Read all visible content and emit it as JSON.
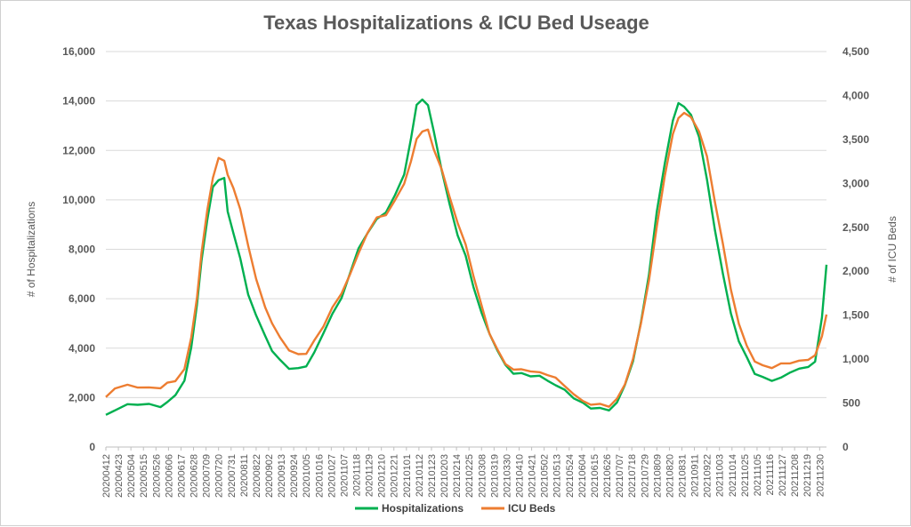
{
  "chart_data": {
    "type": "line",
    "title": "Texas Hospitalizations & ICU Bed Useage",
    "ylabel": "# of Hospitalizations",
    "y2label": "# of ICU Beds",
    "ylim": [
      0,
      16000
    ],
    "y2lim": [
      0,
      4500
    ],
    "yticks": [
      "16,000",
      "14,000",
      "12,000",
      "10,000",
      "8,000",
      "6,000",
      "4,000",
      "2,000",
      "0"
    ],
    "y2ticks": [
      "4,500",
      "4,000",
      "3,500",
      "3,000",
      "2,500",
      "2,000",
      "1,500",
      "1,000",
      "500",
      "0"
    ],
    "x_start": "2020-04-12",
    "x_end": "2022-01-05",
    "xticks": [
      "20200412",
      "20200423",
      "20200504",
      "20200515",
      "20200526",
      "20200606",
      "20200617",
      "20200628",
      "20200709",
      "20200720",
      "20200731",
      "20200811",
      "20200822",
      "20200902",
      "20200913",
      "20200924",
      "20201005",
      "20201016",
      "20201027",
      "20201107",
      "20201118",
      "20201129",
      "20201210",
      "20201221",
      "20210101",
      "20210112",
      "20210123",
      "20210203",
      "20210214",
      "20210225",
      "20210308",
      "20210319",
      "20210330",
      "20210410",
      "20210421",
      "20210502",
      "20210513",
      "20210524",
      "20210604",
      "20210615",
      "20210626",
      "20210707",
      "20210718",
      "20210729",
      "20210809",
      "20210820",
      "20210831",
      "20210911",
      "20210922",
      "20211003",
      "20211014",
      "20211025",
      "20211105",
      "20211116",
      "20211127",
      "20211208",
      "20211219",
      "20211230"
    ],
    "legend_position": "bottom",
    "series": [
      {
        "name": "Hospitalizations",
        "axis": "left",
        "color": "#00b050",
        "points": [
          [
            "2020-04-12",
            1300
          ],
          [
            "2020-04-20",
            1500
          ],
          [
            "2020-05-01",
            1700
          ],
          [
            "2020-05-10",
            1750
          ],
          [
            "2020-05-20",
            1700
          ],
          [
            "2020-05-30",
            1650
          ],
          [
            "2020-06-05",
            1800
          ],
          [
            "2020-06-12",
            2100
          ],
          [
            "2020-06-20",
            2700
          ],
          [
            "2020-06-26",
            4000
          ],
          [
            "2020-07-01",
            5800
          ],
          [
            "2020-07-05",
            7500
          ],
          [
            "2020-07-10",
            9200
          ],
          [
            "2020-07-15",
            10500
          ],
          [
            "2020-07-20",
            10800
          ],
          [
            "2020-07-25",
            10900
          ],
          [
            "2020-07-28",
            9500
          ],
          [
            "2020-08-02",
            8700
          ],
          [
            "2020-08-08",
            7600
          ],
          [
            "2020-08-15",
            6200
          ],
          [
            "2020-08-22",
            5300
          ],
          [
            "2020-08-30",
            4500
          ],
          [
            "2020-09-05",
            3900
          ],
          [
            "2020-09-12",
            3500
          ],
          [
            "2020-09-20",
            3200
          ],
          [
            "2020-09-28",
            3150
          ],
          [
            "2020-10-05",
            3300
          ],
          [
            "2020-10-12",
            3800
          ],
          [
            "2020-10-20",
            4600
          ],
          [
            "2020-10-28",
            5400
          ],
          [
            "2020-11-05",
            6000
          ],
          [
            "2020-11-12",
            7000
          ],
          [
            "2020-11-20",
            8000
          ],
          [
            "2020-11-28",
            8700
          ],
          [
            "2020-12-06",
            9200
          ],
          [
            "2020-12-14",
            9500
          ],
          [
            "2020-12-22",
            10200
          ],
          [
            "2020-12-30",
            11000
          ],
          [
            "2021-01-05",
            12500
          ],
          [
            "2021-01-10",
            13800
          ],
          [
            "2021-01-15",
            14100
          ],
          [
            "2021-01-20",
            13800
          ],
          [
            "2021-01-25",
            12800
          ],
          [
            "2021-02-01",
            11200
          ],
          [
            "2021-02-08",
            9800
          ],
          [
            "2021-02-15",
            8600
          ],
          [
            "2021-02-22",
            7700
          ],
          [
            "2021-03-01",
            6500
          ],
          [
            "2021-03-08",
            5400
          ],
          [
            "2021-03-15",
            4600
          ],
          [
            "2021-03-22",
            3900
          ],
          [
            "2021-03-29",
            3300
          ],
          [
            "2021-04-05",
            3000
          ],
          [
            "2021-04-12",
            2950
          ],
          [
            "2021-04-20",
            2900
          ],
          [
            "2021-04-28",
            2850
          ],
          [
            "2021-05-05",
            2700
          ],
          [
            "2021-05-12",
            2500
          ],
          [
            "2021-05-20",
            2300
          ],
          [
            "2021-05-28",
            2000
          ],
          [
            "2021-06-05",
            1750
          ],
          [
            "2021-06-12",
            1600
          ],
          [
            "2021-06-20",
            1550
          ],
          [
            "2021-06-28",
            1500
          ],
          [
            "2021-07-05",
            1800
          ],
          [
            "2021-07-12",
            2500
          ],
          [
            "2021-07-19",
            3500
          ],
          [
            "2021-07-26",
            5000
          ],
          [
            "2021-08-02",
            7000
          ],
          [
            "2021-08-09",
            9500
          ],
          [
            "2021-08-16",
            11500
          ],
          [
            "2021-08-23",
            13200
          ],
          [
            "2021-08-28",
            13900
          ],
          [
            "2021-09-02",
            13800
          ],
          [
            "2021-09-08",
            13400
          ],
          [
            "2021-09-15",
            12600
          ],
          [
            "2021-09-22",
            10800
          ],
          [
            "2021-09-29",
            8800
          ],
          [
            "2021-10-06",
            7000
          ],
          [
            "2021-10-13",
            5400
          ],
          [
            "2021-10-20",
            4300
          ],
          [
            "2021-10-27",
            3600
          ],
          [
            "2021-11-03",
            3000
          ],
          [
            "2021-11-10",
            2800
          ],
          [
            "2021-11-18",
            2700
          ],
          [
            "2021-11-26",
            2800
          ],
          [
            "2021-12-04",
            3000
          ],
          [
            "2021-12-12",
            3200
          ],
          [
            "2021-12-20",
            3200
          ],
          [
            "2021-12-26",
            3500
          ],
          [
            "2022-01-01",
            5200
          ],
          [
            "2022-01-05",
            7400
          ]
        ]
      },
      {
        "name": "ICU Beds",
        "axis": "right",
        "color": "#ed7d31",
        "points": [
          [
            "2020-04-12",
            580
          ],
          [
            "2020-04-20",
            660
          ],
          [
            "2020-05-01",
            710
          ],
          [
            "2020-05-10",
            680
          ],
          [
            "2020-05-20",
            670
          ],
          [
            "2020-05-30",
            680
          ],
          [
            "2020-06-05",
            720
          ],
          [
            "2020-06-12",
            760
          ],
          [
            "2020-06-20",
            880
          ],
          [
            "2020-06-26",
            1250
          ],
          [
            "2020-07-01",
            1700
          ],
          [
            "2020-07-05",
            2200
          ],
          [
            "2020-07-10",
            2700
          ],
          [
            "2020-07-15",
            3050
          ],
          [
            "2020-07-20",
            3300
          ],
          [
            "2020-07-25",
            3250
          ],
          [
            "2020-07-28",
            3100
          ],
          [
            "2020-08-02",
            2950
          ],
          [
            "2020-08-08",
            2700
          ],
          [
            "2020-08-15",
            2300
          ],
          [
            "2020-08-22",
            1900
          ],
          [
            "2020-08-30",
            1600
          ],
          [
            "2020-09-05",
            1400
          ],
          [
            "2020-09-12",
            1250
          ],
          [
            "2020-09-20",
            1100
          ],
          [
            "2020-09-28",
            1050
          ],
          [
            "2020-10-05",
            1070
          ],
          [
            "2020-10-12",
            1200
          ],
          [
            "2020-10-20",
            1380
          ],
          [
            "2020-10-28",
            1580
          ],
          [
            "2020-11-05",
            1750
          ],
          [
            "2020-11-12",
            1950
          ],
          [
            "2020-11-20",
            2200
          ],
          [
            "2020-11-28",
            2450
          ],
          [
            "2020-12-06",
            2600
          ],
          [
            "2020-12-14",
            2650
          ],
          [
            "2020-12-22",
            2800
          ],
          [
            "2020-12-30",
            3000
          ],
          [
            "2021-01-05",
            3250
          ],
          [
            "2021-01-10",
            3500
          ],
          [
            "2021-01-15",
            3600
          ],
          [
            "2021-01-20",
            3600
          ],
          [
            "2021-01-25",
            3400
          ],
          [
            "2021-02-01",
            3150
          ],
          [
            "2021-02-08",
            2850
          ],
          [
            "2021-02-15",
            2550
          ],
          [
            "2021-02-22",
            2300
          ],
          [
            "2021-03-01",
            1950
          ],
          [
            "2021-03-08",
            1600
          ],
          [
            "2021-03-15",
            1300
          ],
          [
            "2021-03-22",
            1100
          ],
          [
            "2021-03-29",
            950
          ],
          [
            "2021-04-05",
            880
          ],
          [
            "2021-04-12",
            880
          ],
          [
            "2021-04-20",
            870
          ],
          [
            "2021-04-28",
            840
          ],
          [
            "2021-05-05",
            830
          ],
          [
            "2021-05-12",
            780
          ],
          [
            "2021-05-20",
            700
          ],
          [
            "2021-05-28",
            600
          ],
          [
            "2021-06-05",
            520
          ],
          [
            "2021-06-12",
            490
          ],
          [
            "2021-06-20",
            480
          ],
          [
            "2021-06-28",
            470
          ],
          [
            "2021-07-05",
            540
          ],
          [
            "2021-07-12",
            720
          ],
          [
            "2021-07-19",
            1000
          ],
          [
            "2021-07-26",
            1400
          ],
          [
            "2021-08-02",
            1900
          ],
          [
            "2021-08-09",
            2500
          ],
          [
            "2021-08-16",
            3100
          ],
          [
            "2021-08-23",
            3550
          ],
          [
            "2021-08-28",
            3750
          ],
          [
            "2021-09-02",
            3800
          ],
          [
            "2021-09-08",
            3750
          ],
          [
            "2021-09-15",
            3600
          ],
          [
            "2021-09-22",
            3300
          ],
          [
            "2021-09-29",
            2800
          ],
          [
            "2021-10-06",
            2300
          ],
          [
            "2021-10-13",
            1800
          ],
          [
            "2021-10-20",
            1400
          ],
          [
            "2021-10-27",
            1150
          ],
          [
            "2021-11-03",
            980
          ],
          [
            "2021-11-10",
            920
          ],
          [
            "2021-11-18",
            910
          ],
          [
            "2021-11-26",
            940
          ],
          [
            "2021-12-04",
            960
          ],
          [
            "2021-12-12",
            980
          ],
          [
            "2021-12-20",
            990
          ],
          [
            "2021-12-26",
            1050
          ],
          [
            "2022-01-01",
            1250
          ],
          [
            "2022-01-05",
            1520
          ]
        ]
      }
    ]
  }
}
